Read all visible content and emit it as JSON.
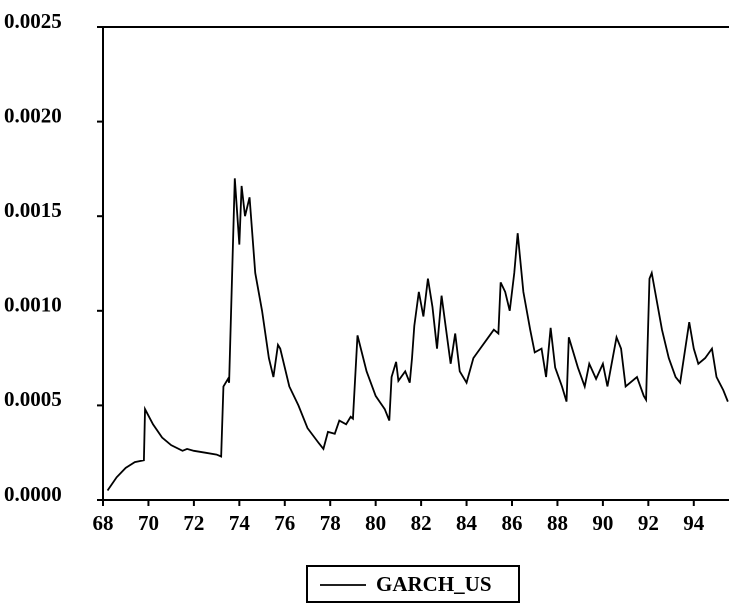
{
  "chart_data": {
    "type": "line",
    "xlim": [
      68,
      95.55
    ],
    "xticks": [
      68,
      70,
      72,
      74,
      76,
      78,
      80,
      82,
      84,
      86,
      88,
      90,
      92,
      94
    ],
    "ylim": [
      0,
      0.0025
    ],
    "yticks": [
      {
        "value": 0,
        "label": "0.0000"
      },
      0.0005,
      {
        "value": 0.001,
        "label": "0.0010"
      },
      0.0015,
      {
        "value": 0.002,
        "label": "0.0020"
      },
      0.0025
    ],
    "legend": "bottom",
    "series": [
      {
        "name": "GARCH_US",
        "color": "#000000",
        "x": [
          68.2,
          68.6,
          69.0,
          69.4,
          69.8,
          69.85,
          70.2,
          70.6,
          71.0,
          71.5,
          71.7,
          72.0,
          72.5,
          73.0,
          73.2,
          73.3,
          73.5,
          73.55,
          73.8,
          74.0,
          74.1,
          74.25,
          74.45,
          74.7,
          75.0,
          75.3,
          75.5,
          75.7,
          75.8,
          76.2,
          76.6,
          77.0,
          77.5,
          77.7,
          77.9,
          78.2,
          78.4,
          78.7,
          78.9,
          79.0,
          79.2,
          79.6,
          80.0,
          80.4,
          80.6,
          80.7,
          80.9,
          81.0,
          81.3,
          81.5,
          81.6,
          81.7,
          81.9,
          82.1,
          82.3,
          82.5,
          82.7,
          82.9,
          83.1,
          83.3,
          83.5,
          83.7,
          84.0,
          84.3,
          84.6,
          84.9,
          85.2,
          85.4,
          85.5,
          85.7,
          85.9,
          86.1,
          86.25,
          86.5,
          86.8,
          87.0,
          87.3,
          87.5,
          87.7,
          87.9,
          88.2,
          88.4,
          88.5,
          88.9,
          89.2,
          89.4,
          89.7,
          90.0,
          90.2,
          90.6,
          90.8,
          91.0,
          91.5,
          91.8,
          91.9,
          92.05,
          92.15,
          92.3,
          92.6,
          92.9,
          93.2,
          93.4,
          93.8,
          94.0,
          94.2,
          94.5,
          94.8,
          95.0,
          95.3,
          95.5
        ],
        "values": [
          5e-05,
          0.00012,
          0.00017,
          0.0002,
          0.00021,
          0.00048,
          0.0004,
          0.00033,
          0.00029,
          0.00026,
          0.00027,
          0.00026,
          0.00025,
          0.00024,
          0.00023,
          0.0006,
          0.00064,
          0.00062,
          0.0017,
          0.00135,
          0.00166,
          0.0015,
          0.0016,
          0.0012,
          0.001,
          0.00075,
          0.00065,
          0.00082,
          0.0008,
          0.0006,
          0.0005,
          0.00038,
          0.0003,
          0.00027,
          0.00036,
          0.00035,
          0.00042,
          0.0004,
          0.00044,
          0.00043,
          0.00087,
          0.00068,
          0.00055,
          0.00048,
          0.00042,
          0.00065,
          0.00073,
          0.00063,
          0.00068,
          0.00062,
          0.00075,
          0.00092,
          0.0011,
          0.00097,
          0.00117,
          0.00102,
          0.0008,
          0.00108,
          0.0009,
          0.00072,
          0.00088,
          0.00068,
          0.00062,
          0.00075,
          0.0008,
          0.00085,
          0.0009,
          0.00088,
          0.00115,
          0.0011,
          0.001,
          0.0012,
          0.00141,
          0.0011,
          0.0009,
          0.00078,
          0.0008,
          0.00065,
          0.00091,
          0.0007,
          0.0006,
          0.00052,
          0.00086,
          0.0007,
          0.0006,
          0.00072,
          0.00064,
          0.00072,
          0.0006,
          0.00086,
          0.0008,
          0.0006,
          0.00065,
          0.00055,
          0.00053,
          0.00117,
          0.0012,
          0.0011,
          0.0009,
          0.00075,
          0.00065,
          0.00062,
          0.00094,
          0.0008,
          0.00072,
          0.00075,
          0.0008,
          0.00065,
          0.00058,
          0.00052
        ]
      }
    ]
  }
}
